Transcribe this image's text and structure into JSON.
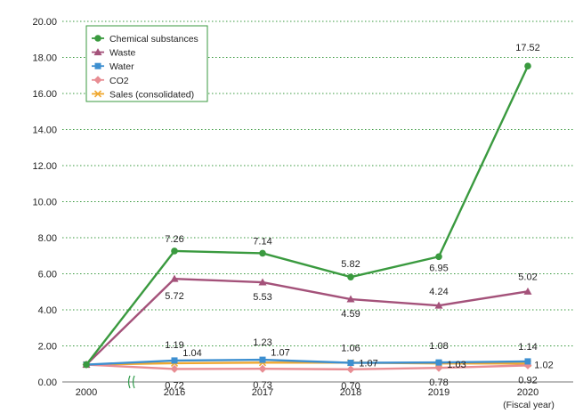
{
  "chart_data": {
    "type": "line",
    "x_axis_note": "(Fiscal year)",
    "categories": [
      "2000",
      "2016",
      "2017",
      "2018",
      "2019",
      "2020"
    ],
    "ylim": [
      0,
      20
    ],
    "y_ticks": [
      "0.00",
      "2.00",
      "4.00",
      "6.00",
      "8.00",
      "10.00",
      "12.00",
      "14.00",
      "16.00",
      "18.00",
      "20.00"
    ],
    "grid": "horizontal dotted",
    "legend_position": "top-left",
    "series": [
      {
        "name": "Chemical substances",
        "color": "#3a9a3f",
        "marker": "circle",
        "values": [
          0.96,
          7.26,
          7.14,
          5.82,
          6.95,
          17.52
        ],
        "labels": [
          "",
          "7.26",
          "7.14",
          "5.82",
          "6.95",
          "17.52"
        ]
      },
      {
        "name": "Waste",
        "color": "#a4527a",
        "marker": "triangle",
        "values": [
          0.96,
          5.72,
          5.53,
          4.59,
          4.24,
          5.02
        ],
        "labels": [
          "",
          "5.72",
          "5.53",
          "4.59",
          "4.24",
          "5.02"
        ]
      },
      {
        "name": "Water",
        "color": "#3d8fd0",
        "marker": "square",
        "values": [
          0.96,
          1.19,
          1.23,
          1.06,
          1.08,
          1.14
        ],
        "labels": [
          "",
          "1.19",
          "1.23",
          "1.06",
          "1.08",
          "1.14"
        ]
      },
      {
        "name": "CO2",
        "color": "#e88d93",
        "marker": "diamond",
        "values": [
          0.96,
          0.72,
          0.73,
          0.7,
          0.78,
          0.92
        ],
        "labels": [
          "",
          "0.72",
          "0.73",
          "0.70",
          "0.78",
          "0.92"
        ]
      },
      {
        "name": "Sales (consolidated)",
        "color": "#f0a830",
        "marker": "x",
        "values": [
          0.96,
          1.04,
          1.07,
          1.07,
          1.03,
          1.02
        ],
        "labels": [
          "",
          "1.04",
          "1.07",
          "1.07",
          "1.03",
          "1.02"
        ]
      }
    ]
  }
}
